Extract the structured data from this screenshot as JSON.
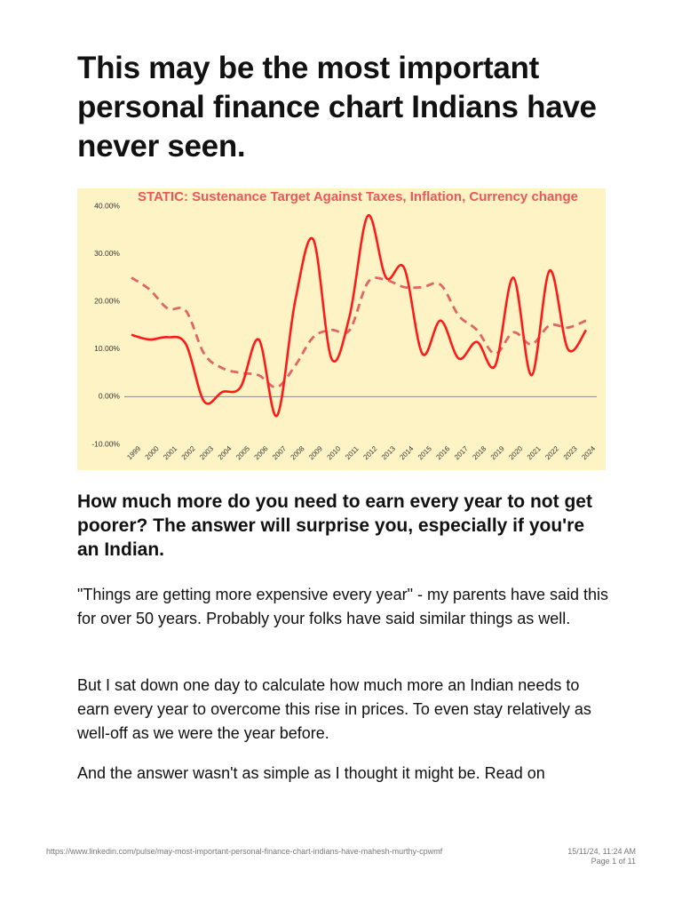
{
  "header": {
    "title": "This may be the most important personal finance chart Indians have never seen."
  },
  "chart_data": {
    "type": "line",
    "title": "STATIC: Sustenance Target Against Taxes, Inflation, Currency change",
    "categories": [
      "1999",
      "2000",
      "2001",
      "2002",
      "2003",
      "2004",
      "2005",
      "2006",
      "2007",
      "2008",
      "2009",
      "2010",
      "2011",
      "2012",
      "2013",
      "2014",
      "2015",
      "2016",
      "2017",
      "2018",
      "2019",
      "2020",
      "2021",
      "2022",
      "2023",
      "2024"
    ],
    "series": [
      {
        "color": "#ff1a1a",
        "style": "solid",
        "values": [
          13,
          12,
          12.5,
          11,
          -1,
          1,
          2,
          12,
          -4,
          20,
          33,
          8,
          17,
          38,
          25,
          27,
          9,
          16,
          8,
          11.5,
          6.5,
          25,
          4.5,
          26.5,
          10,
          14
        ]
      },
      {
        "color": "#e06666",
        "style": "dashed",
        "values": [
          25,
          22.5,
          18.5,
          18,
          9,
          6,
          5,
          4.5,
          2,
          6.5,
          12.5,
          14,
          14,
          24,
          24.5,
          23,
          23,
          23.5,
          17,
          14,
          9,
          13.5,
          11,
          15,
          14.5,
          16
        ]
      }
    ],
    "ylim": [
      -10,
      40
    ],
    "yticks": [
      {
        "value": -10,
        "label": "-10.00%"
      },
      {
        "value": 0,
        "label": "0.00%"
      },
      {
        "value": 10,
        "label": "10.00%"
      },
      {
        "value": 20,
        "label": "20.00%"
      },
      {
        "value": 30,
        "label": "30.00%"
      },
      {
        "value": 40,
        "label": "40.00%"
      }
    ],
    "grid": false,
    "background": "#fdf3c4"
  },
  "subheading": "How much more do you need to earn every year to not get poorer? The answer will surprise you, especially if you're an Indian.",
  "paragraphs": [
    "\"Things are getting more expensive every year\" - my parents have said this for over 50 years. Probably your folks have said similar things as well.",
    "But I sat down one day to calculate how much more an Indian needs to earn every year to overcome this rise in prices. To even stay relatively as well-off as we were the year before.",
    "And the answer wasn't as simple as I thought it might be. Read on"
  ],
  "footer": {
    "url": "https://www.linkedin.com/pulse/may-most-important-personal-finance-chart-indians-have-mahesh-murthy-cpwmf",
    "timestamp": "15/11/24, 11:24 AM",
    "page": "Page 1 of 11"
  }
}
